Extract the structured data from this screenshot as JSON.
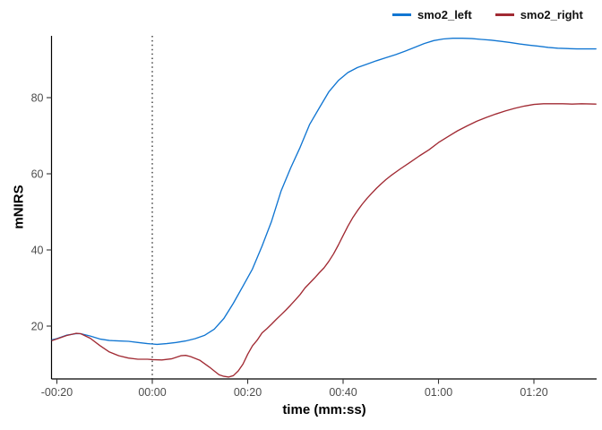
{
  "chart_data": {
    "type": "line",
    "title": "",
    "xlabel": "time (mm:ss)",
    "ylabel": "mNIRS",
    "grid": false,
    "background": "#ffffff",
    "axis_color": "#000000",
    "tick_color": "#333333",
    "tick_label_color": "#4d4d4d",
    "x_unit": "seconds",
    "x_range_seconds": [
      -21,
      93
    ],
    "ylim": [
      6,
      97
    ],
    "x_ticks": [
      {
        "seconds": -20,
        "label": "-00:20"
      },
      {
        "seconds": 0,
        "label": "00:00"
      },
      {
        "seconds": 20,
        "label": "00:20"
      },
      {
        "seconds": 40,
        "label": "00:40"
      },
      {
        "seconds": 60,
        "label": "01:00"
      },
      {
        "seconds": 80,
        "label": "01:20"
      }
    ],
    "y_ticks": [
      {
        "value": 20,
        "label": "20"
      },
      {
        "value": 40,
        "label": "40"
      },
      {
        "value": 60,
        "label": "60"
      },
      {
        "value": 80,
        "label": "80"
      }
    ],
    "vline": {
      "seconds": 0,
      "style": "dotted",
      "color": "#000000"
    },
    "legend": {
      "position": "top-right",
      "entries": [
        "smo2_left",
        "smo2_right"
      ]
    },
    "series": [
      {
        "name": "smo2_left",
        "color": "#1176d2",
        "points": [
          [
            -21,
            16.4
          ],
          [
            -20,
            16.7
          ],
          [
            -18,
            17.6
          ],
          [
            -16,
            18.0
          ],
          [
            -15,
            18.0
          ],
          [
            -13,
            17.4
          ],
          [
            -11,
            16.6
          ],
          [
            -9,
            16.2
          ],
          [
            -7,
            16.1
          ],
          [
            -5,
            16.0
          ],
          [
            -3,
            15.7
          ],
          [
            -1,
            15.4
          ],
          [
            0,
            15.3
          ],
          [
            1,
            15.2
          ],
          [
            3,
            15.4
          ],
          [
            5,
            15.7
          ],
          [
            7,
            16.1
          ],
          [
            9,
            16.7
          ],
          [
            11,
            17.6
          ],
          [
            13,
            19.2
          ],
          [
            15,
            22.0
          ],
          [
            17,
            26.0
          ],
          [
            19,
            30.5
          ],
          [
            21,
            35.0
          ],
          [
            23,
            41.0
          ],
          [
            25,
            47.5
          ],
          [
            27,
            55.5
          ],
          [
            29,
            61.5
          ],
          [
            31,
            67.0
          ],
          [
            33,
            73.0
          ],
          [
            35,
            77.3
          ],
          [
            37,
            81.5
          ],
          [
            39,
            84.5
          ],
          [
            41,
            86.6
          ],
          [
            43,
            87.9
          ],
          [
            45,
            88.8
          ],
          [
            47,
            89.7
          ],
          [
            49,
            90.5
          ],
          [
            51,
            91.3
          ],
          [
            53,
            92.2
          ],
          [
            55,
            93.2
          ],
          [
            57,
            94.2
          ],
          [
            59,
            95.0
          ],
          [
            61,
            95.4
          ],
          [
            63,
            95.6
          ],
          [
            65,
            95.6
          ],
          [
            67,
            95.5
          ],
          [
            69,
            95.3
          ],
          [
            71,
            95.1
          ],
          [
            73,
            94.8
          ],
          [
            75,
            94.5
          ],
          [
            77,
            94.1
          ],
          [
            79,
            93.8
          ],
          [
            81,
            93.5
          ],
          [
            83,
            93.2
          ],
          [
            85,
            93.0
          ],
          [
            87,
            92.9
          ],
          [
            89,
            92.8
          ],
          [
            91,
            92.8
          ],
          [
            93,
            92.8
          ]
        ]
      },
      {
        "name": "smo2_right",
        "color": "#a12a33",
        "points": [
          [
            -21,
            16.2
          ],
          [
            -20,
            16.6
          ],
          [
            -18,
            17.5
          ],
          [
            -16,
            18.1
          ],
          [
            -15,
            18.0
          ],
          [
            -13,
            16.8
          ],
          [
            -11,
            14.9
          ],
          [
            -9,
            13.2
          ],
          [
            -7,
            12.2
          ],
          [
            -5,
            11.6
          ],
          [
            -3,
            11.3
          ],
          [
            -1,
            11.3
          ],
          [
            0,
            11.2
          ],
          [
            2,
            11.1
          ],
          [
            4,
            11.4
          ],
          [
            5,
            11.8
          ],
          [
            6,
            12.2
          ],
          [
            7,
            12.3
          ],
          [
            8,
            12.0
          ],
          [
            10,
            11.0
          ],
          [
            12,
            9.2
          ],
          [
            13,
            8.2
          ],
          [
            14,
            7.2
          ],
          [
            15,
            6.8
          ],
          [
            16,
            6.6
          ],
          [
            17,
            7.0
          ],
          [
            18,
            8.2
          ],
          [
            19,
            10.0
          ],
          [
            20,
            12.6
          ],
          [
            21,
            14.8
          ],
          [
            22,
            16.3
          ],
          [
            23,
            18.2
          ],
          [
            24,
            19.3
          ],
          [
            25,
            20.5
          ],
          [
            26,
            21.8
          ],
          [
            27,
            23.0
          ],
          [
            28,
            24.2
          ],
          [
            29,
            25.5
          ],
          [
            30,
            26.9
          ],
          [
            31,
            28.3
          ],
          [
            32,
            30.0
          ],
          [
            33,
            31.3
          ],
          [
            34,
            32.6
          ],
          [
            35,
            34.0
          ],
          [
            36,
            35.3
          ],
          [
            37,
            37.0
          ],
          [
            38,
            39.0
          ],
          [
            39,
            41.3
          ],
          [
            40,
            43.8
          ],
          [
            41,
            46.2
          ],
          [
            42,
            48.4
          ],
          [
            43,
            50.3
          ],
          [
            44,
            52.0
          ],
          [
            45,
            53.5
          ],
          [
            46,
            54.9
          ],
          [
            47,
            56.2
          ],
          [
            48,
            57.4
          ],
          [
            49,
            58.5
          ],
          [
            50,
            59.5
          ],
          [
            52,
            61.3
          ],
          [
            54,
            63.0
          ],
          [
            56,
            64.7
          ],
          [
            58,
            66.3
          ],
          [
            60,
            68.2
          ],
          [
            62,
            69.8
          ],
          [
            64,
            71.3
          ],
          [
            66,
            72.6
          ],
          [
            68,
            73.8
          ],
          [
            70,
            74.8
          ],
          [
            72,
            75.7
          ],
          [
            74,
            76.5
          ],
          [
            76,
            77.2
          ],
          [
            78,
            77.8
          ],
          [
            80,
            78.2
          ],
          [
            82,
            78.4
          ],
          [
            84,
            78.4
          ],
          [
            86,
            78.4
          ],
          [
            88,
            78.3
          ],
          [
            90,
            78.4
          ],
          [
            93,
            78.3
          ]
        ]
      }
    ]
  }
}
